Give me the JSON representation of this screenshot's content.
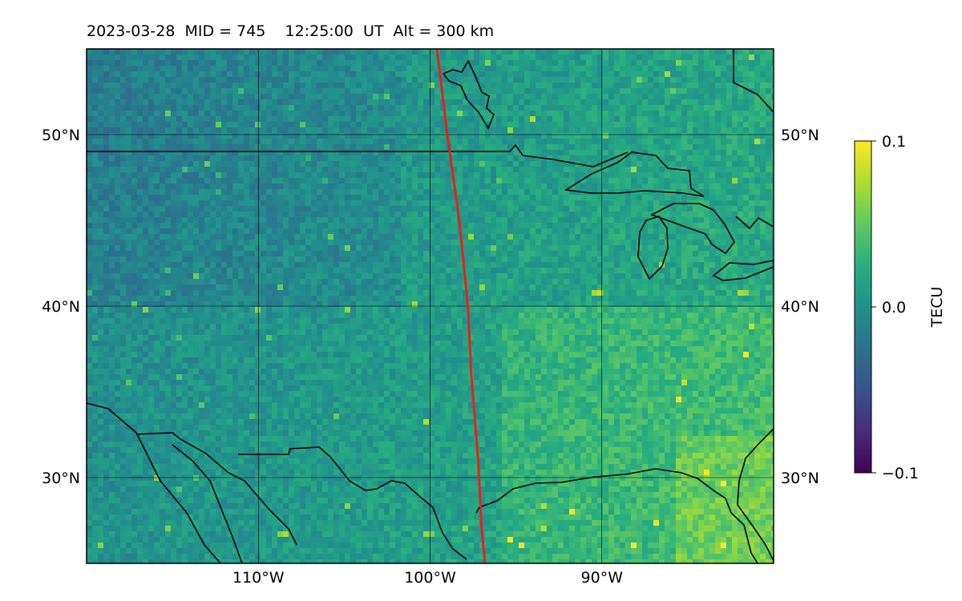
{
  "title": "2023-03-28  MID = 745    12:25:00  UT  Alt = 300 km",
  "chart_data": {
    "type": "heatmap",
    "title": "2023-03-28  MID = 745    12:25:00  UT  Alt = 300 km",
    "map_extent": {
      "lon": [
        -120,
        -80
      ],
      "lat": [
        25,
        55
      ]
    },
    "lon_ticks": [
      {
        "value": -110,
        "label": "110°W"
      },
      {
        "value": -100,
        "label": "100°W"
      },
      {
        "value": -90,
        "label": "90°W"
      }
    ],
    "lat_ticks": [
      {
        "value": 50,
        "label": "50°N"
      },
      {
        "value": 40,
        "label": "40°N"
      },
      {
        "value": 30,
        "label": "30°N"
      }
    ],
    "gridlines": true,
    "colorbar": {
      "label": "TECU",
      "vmin": -0.1,
      "vmax": 0.1,
      "ticks": [
        {
          "value": 0.1,
          "label": "0.1"
        },
        {
          "value": 0.0,
          "label": "0.0"
        },
        {
          "value": -0.1,
          "label": "−0.1"
        }
      ],
      "colormap": "viridis"
    },
    "red_track": [
      [
        -99.6,
        55
      ],
      [
        -99.0,
        50
      ],
      [
        -98.3,
        45
      ],
      [
        -97.8,
        40
      ],
      [
        -97.6,
        36
      ],
      [
        -97.2,
        31
      ],
      [
        -97.0,
        27
      ],
      [
        -96.8,
        25
      ]
    ],
    "coastline_color": "#000000",
    "track_color": "#e8201a"
  }
}
